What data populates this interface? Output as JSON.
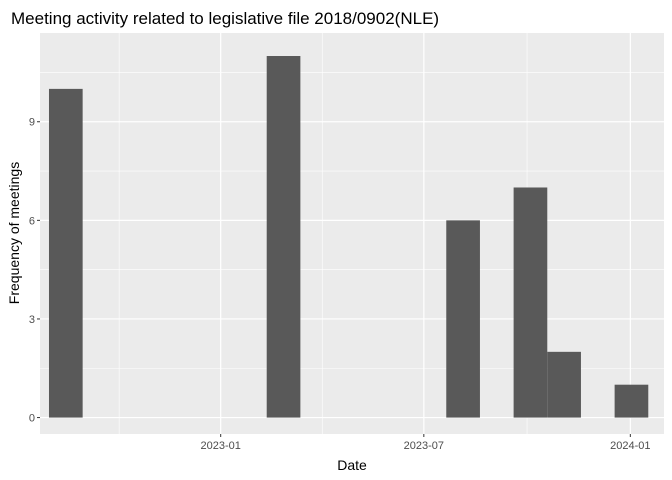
{
  "chart_data": {
    "type": "bar",
    "title": "Meeting activity related to legislative file 2018/0902(NLE)",
    "xlabel": "Date",
    "ylabel": "Frequency of meetings",
    "x_axis": {
      "type": "date",
      "range": [
        "2022-07-24",
        "2024-01-31"
      ],
      "tick_dates": [
        "2023-01-01",
        "2023-07-01",
        "2024-01-01"
      ],
      "tick_labels": [
        "2023-01",
        "2023-07",
        "2024-01"
      ]
    },
    "ylim": [
      -0.5,
      11.7
    ],
    "y_ticks": [
      0,
      3,
      6,
      9
    ],
    "y_tick_labels": [
      "0",
      "3",
      "6",
      "9"
    ],
    "bins": [
      {
        "start": "2022-08-01",
        "end": "2022-08-31",
        "value": 10
      },
      {
        "start": "2023-02-11",
        "end": "2023-03-13",
        "value": 11
      },
      {
        "start": "2023-07-21",
        "end": "2023-08-20",
        "value": 6
      },
      {
        "start": "2023-09-19",
        "end": "2023-10-19",
        "value": 7
      },
      {
        "start": "2023-10-19",
        "end": "2023-11-18",
        "value": 2
      },
      {
        "start": "2023-12-18",
        "end": "2024-01-17",
        "value": 1
      }
    ],
    "grid": true,
    "bar_color": "#595959",
    "panel_color": "#ebebeb",
    "grid_color": "#ffffff"
  }
}
